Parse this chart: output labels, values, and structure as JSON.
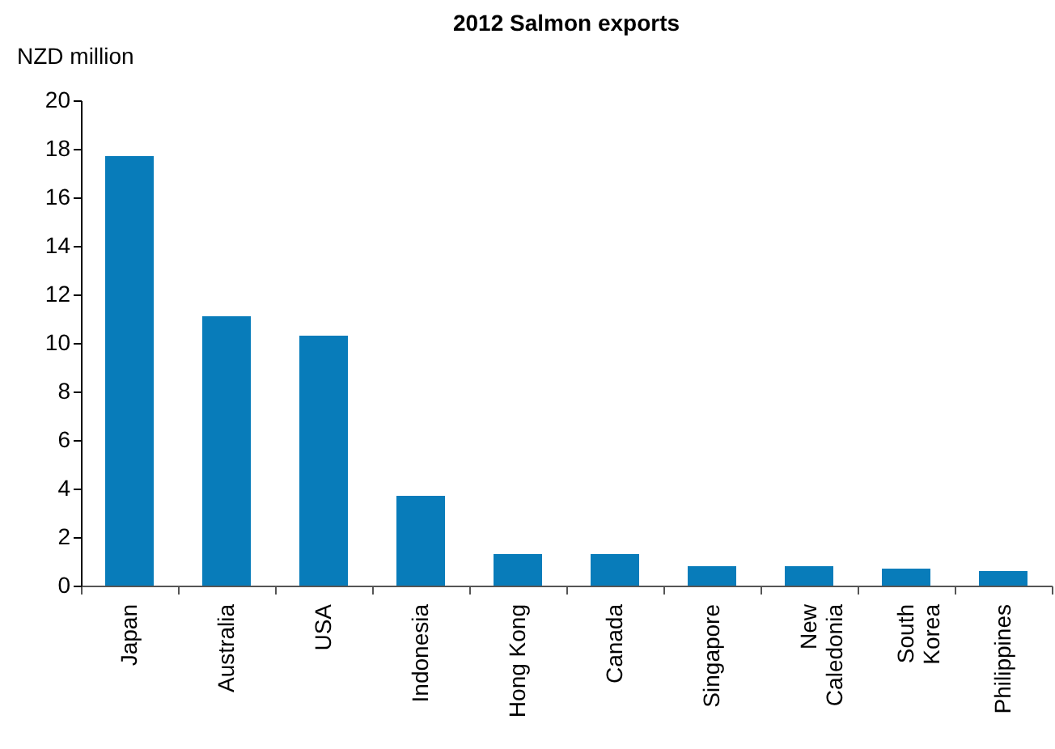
{
  "chart_data": {
    "type": "bar",
    "title": "2012 Salmon exports",
    "ylabel": "NZD million",
    "categories": [
      "Japan",
      "Australia",
      "USA",
      "Indonesia",
      "Hong Kong",
      "Canada",
      "Singapore",
      "New\nCaledonia",
      "South\nKorea",
      "Philippines"
    ],
    "values": [
      17.7,
      11.1,
      10.3,
      3.7,
      1.3,
      1.3,
      0.8,
      0.8,
      0.7,
      0.6
    ],
    "color": "#087cba",
    "ylim": [
      0,
      20
    ],
    "yticks": [
      0,
      2,
      4,
      6,
      8,
      10,
      12,
      14,
      16,
      18,
      20
    ],
    "grid": false
  }
}
